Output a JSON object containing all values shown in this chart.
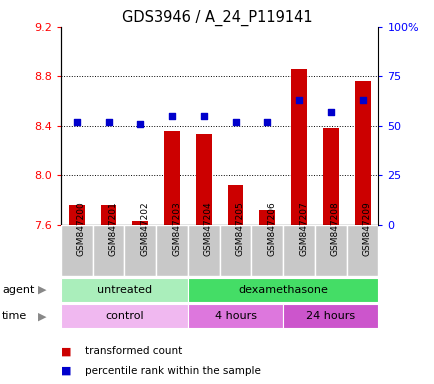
{
  "title": "GDS3946 / A_24_P119141",
  "samples": [
    "GSM847200",
    "GSM847201",
    "GSM847202",
    "GSM847203",
    "GSM847204",
    "GSM847205",
    "GSM847206",
    "GSM847207",
    "GSM847208",
    "GSM847209"
  ],
  "transformed_count": [
    7.76,
    7.76,
    7.63,
    8.36,
    8.33,
    7.92,
    7.72,
    8.86,
    8.38,
    8.76
  ],
  "percentile_rank": [
    52,
    52,
    51,
    55,
    55,
    52,
    52,
    63,
    57,
    63
  ],
  "ylim_left": [
    7.6,
    9.2
  ],
  "ylim_right": [
    0,
    100
  ],
  "yticks_left": [
    7.6,
    8.0,
    8.4,
    8.8,
    9.2
  ],
  "yticks_right": [
    0,
    25,
    50,
    75,
    100
  ],
  "ytick_labels_right": [
    "0",
    "25",
    "50",
    "75",
    "100%"
  ],
  "bar_color": "#cc0000",
  "dot_color": "#0000cc",
  "bar_bottom": 7.6,
  "gridlines": [
    8.0,
    8.4,
    8.8
  ],
  "agent_groups": [
    {
      "label": "untreated",
      "start": 0,
      "end": 4,
      "color": "#aaeebb"
    },
    {
      "label": "dexamethasone",
      "start": 4,
      "end": 10,
      "color": "#44dd66"
    }
  ],
  "time_groups": [
    {
      "label": "control",
      "start": 0,
      "end": 4,
      "color": "#f0b8f0"
    },
    {
      "label": "4 hours",
      "start": 4,
      "end": 7,
      "color": "#dd77dd"
    },
    {
      "label": "24 hours",
      "start": 7,
      "end": 10,
      "color": "#cc55cc"
    }
  ],
  "legend_bar_color": "#cc0000",
  "legend_dot_color": "#0000cc",
  "legend_bar_label": "transformed count",
  "legend_dot_label": "percentile rank within the sample",
  "sample_label_bg": "#c8c8c8",
  "plot_bg": "#ffffff",
  "bar_width": 0.5
}
